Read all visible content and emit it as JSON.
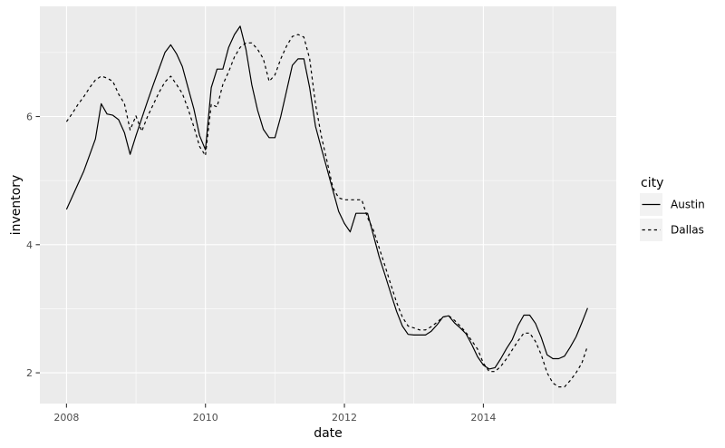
{
  "chart_data": {
    "type": "line",
    "title": "",
    "xlabel": "date",
    "ylabel": "inventory",
    "legend_title": "city",
    "legend_position": "right",
    "grid": true,
    "frequency": "monthly",
    "start": "2008-01",
    "end": "2015-07",
    "x_start_year": 2008,
    "x_ticks": [
      2008,
      2010,
      2012,
      2014
    ],
    "x_tick_labels": [
      "2008",
      "2010",
      "2012",
      "2014"
    ],
    "x_minor_ticks": [
      2009,
      2011,
      2013,
      2015
    ],
    "y_ticks": [
      2,
      4,
      6
    ],
    "y_tick_labels": [
      "2",
      "4",
      "6"
    ],
    "y_minor_ticks": [
      3,
      5,
      7
    ],
    "xlim": [
      2007.617,
      2015.912
    ],
    "ylim": [
      1.52,
      7.72
    ],
    "series": [
      {
        "name": "Austin",
        "linetype": "solid",
        "color": "#000000",
        "values": [
          4.55,
          4.75,
          4.95,
          5.15,
          5.4,
          5.65,
          6.2,
          6.04,
          6.02,
          5.95,
          5.75,
          5.41,
          5.7,
          5.97,
          6.24,
          6.5,
          6.75,
          7.0,
          7.12,
          6.98,
          6.78,
          6.45,
          6.12,
          5.7,
          5.48,
          6.45,
          6.74,
          6.74,
          7.08,
          7.28,
          7.41,
          7.05,
          6.5,
          6.1,
          5.8,
          5.67,
          5.67,
          6.0,
          6.4,
          6.8,
          6.9,
          6.9,
          6.45,
          5.85,
          5.51,
          5.18,
          4.85,
          4.52,
          4.33,
          4.2,
          4.49,
          4.49,
          4.49,
          4.15,
          3.81,
          3.53,
          3.24,
          2.96,
          2.73,
          2.6,
          2.59,
          2.59,
          2.59,
          2.65,
          2.75,
          2.87,
          2.89,
          2.78,
          2.7,
          2.61,
          2.44,
          2.25,
          2.12,
          2.06,
          2.08,
          2.22,
          2.38,
          2.52,
          2.74,
          2.9,
          2.9,
          2.77,
          2.55,
          2.28,
          2.22,
          2.22,
          2.26,
          2.4,
          2.56,
          2.78,
          3.01
        ]
      },
      {
        "name": "Dallas",
        "linetype": "dashed",
        "color": "#000000",
        "values": [
          5.92,
          6.05,
          6.19,
          6.31,
          6.45,
          6.57,
          6.63,
          6.6,
          6.55,
          6.35,
          6.2,
          5.79,
          6.01,
          5.77,
          6.0,
          6.19,
          6.38,
          6.54,
          6.63,
          6.5,
          6.36,
          6.12,
          5.84,
          5.53,
          5.39,
          6.19,
          6.15,
          6.5,
          6.7,
          6.93,
          7.08,
          7.15,
          7.15,
          7.05,
          6.9,
          6.55,
          6.65,
          6.9,
          7.1,
          7.25,
          7.28,
          7.24,
          6.9,
          6.2,
          5.7,
          5.3,
          4.89,
          4.73,
          4.7,
          4.7,
          4.7,
          4.7,
          4.42,
          4.23,
          3.95,
          3.67,
          3.38,
          3.1,
          2.87,
          2.73,
          2.7,
          2.67,
          2.67,
          2.72,
          2.79,
          2.87,
          2.89,
          2.82,
          2.73,
          2.63,
          2.5,
          2.37,
          2.15,
          2.02,
          2.02,
          2.1,
          2.22,
          2.36,
          2.5,
          2.62,
          2.62,
          2.49,
          2.28,
          2.0,
          1.84,
          1.78,
          1.78,
          1.88,
          2.0,
          2.15,
          2.42
        ]
      }
    ]
  },
  "style": {
    "panel_bg": "#EBEBEB",
    "grid_color": "#FFFFFF",
    "tick_label_color": "#4D4D4D",
    "tick_mark_color": "#333333",
    "axis_title_color": "#000000",
    "legend_key_bg": "#F2F2F2",
    "outer_bg": "#FFFFFF",
    "line_color": "#000000"
  }
}
